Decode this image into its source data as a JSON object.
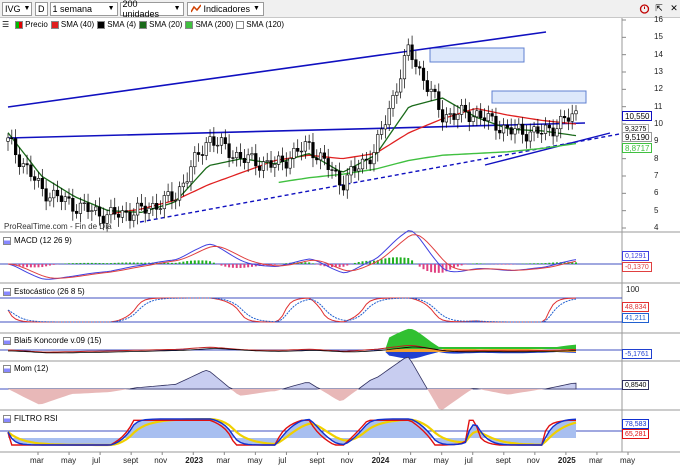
{
  "toolbar": {
    "ticker": "IVG",
    "period_code": "D",
    "timeframe": "1 semana",
    "units": "200 unidades",
    "indicators_label": "Indicadores"
  },
  "legend": {
    "price": "Precio",
    "sma40": "SMA (40)",
    "sma4": "SMA (4)",
    "sma20": "SMA (20)",
    "sma200": "SMA (200)",
    "sma120": "SMA (120)",
    "colors": {
      "sma40": "#e02020",
      "sma4": "#000000",
      "sma20": "#1a6a1a",
      "sma200": "#40c040",
      "sma120": "#ffffff"
    }
  },
  "source": "ProRealTime.com - Fin de Día",
  "price_axis": {
    "ticks": [
      "16",
      "15",
      "14",
      "13",
      "12",
      "11",
      "10",
      "9",
      "8",
      "7",
      "6",
      "5",
      "4"
    ],
    "tags": {
      "last": "10,550",
      "sma4": "9,5190",
      "sma20": "9,3275",
      "sma200": "8,8717"
    }
  },
  "panels": {
    "macd": {
      "label": "MACD (12 26 9)",
      "v1": "0,1291",
      "v2": "-0,1370"
    },
    "stoch": {
      "label": "Estocástico (26 8 5)",
      "top": "100",
      "v1": "48,834",
      "v2": "41,211"
    },
    "koncorde": {
      "label": "Blai5 Koncorde v.09 (15)",
      "v1": "-5,1761"
    },
    "mom": {
      "label": "Mom (12)",
      "v1": "0,8540"
    },
    "rsi": {
      "label": "FILTRO RSI",
      "v1": "78,583",
      "v2": "65,281"
    }
  },
  "x_axis": {
    "labels": [
      "mar",
      "may",
      "jul",
      "sept",
      "nov",
      "2023",
      "mar",
      "may",
      "jul",
      "sept",
      "nov",
      "2024",
      "mar",
      "may",
      "jul",
      "sept",
      "nov",
      "2025",
      "mar",
      "may"
    ]
  },
  "chart_data": {
    "type": "line",
    "title": "IVG",
    "xlabel": "",
    "ylabel": "",
    "ylim": [
      4,
      16
    ],
    "categories": [
      "2022-03",
      "2022-05",
      "2022-07",
      "2022-09",
      "2022-11",
      "2023-01",
      "2023-03",
      "2023-05",
      "2023-07",
      "2023-09",
      "2023-11",
      "2024-01",
      "2024-03",
      "2024-05",
      "2024-07",
      "2024-09",
      "2024-11",
      "2025-01"
    ],
    "series": [
      {
        "name": "Precio",
        "values": [
          9.0,
          6.2,
          5.3,
          4.7,
          5.0,
          5.8,
          9.2,
          8.0,
          7.6,
          8.8,
          6.6,
          8.5,
          14.3,
          10.5,
          10.6,
          9.6,
          9.5,
          10.55
        ]
      },
      {
        "name": "SMA (40)",
        "values": [
          null,
          null,
          null,
          4.8,
          5.1,
          5.6,
          6.5,
          7.2,
          7.9,
          8.2,
          8.0,
          8.3,
          9.5,
          10.3,
          10.9,
          10.5,
          10.2,
          10.0
        ]
      },
      {
        "name": "SMA (20)",
        "values": [
          9.5,
          7.0,
          5.8,
          5.0,
          4.9,
          5.5,
          7.6,
          8.0,
          7.7,
          8.3,
          7.2,
          8.2,
          11.0,
          11.5,
          10.4,
          9.7,
          9.6,
          9.33
        ]
      },
      {
        "name": "SMA (200)",
        "values": [
          null,
          null,
          null,
          null,
          null,
          null,
          null,
          null,
          6.6,
          6.9,
          7.1,
          7.4,
          7.9,
          8.2,
          8.3,
          8.4,
          8.6,
          8.87
        ]
      }
    ]
  }
}
